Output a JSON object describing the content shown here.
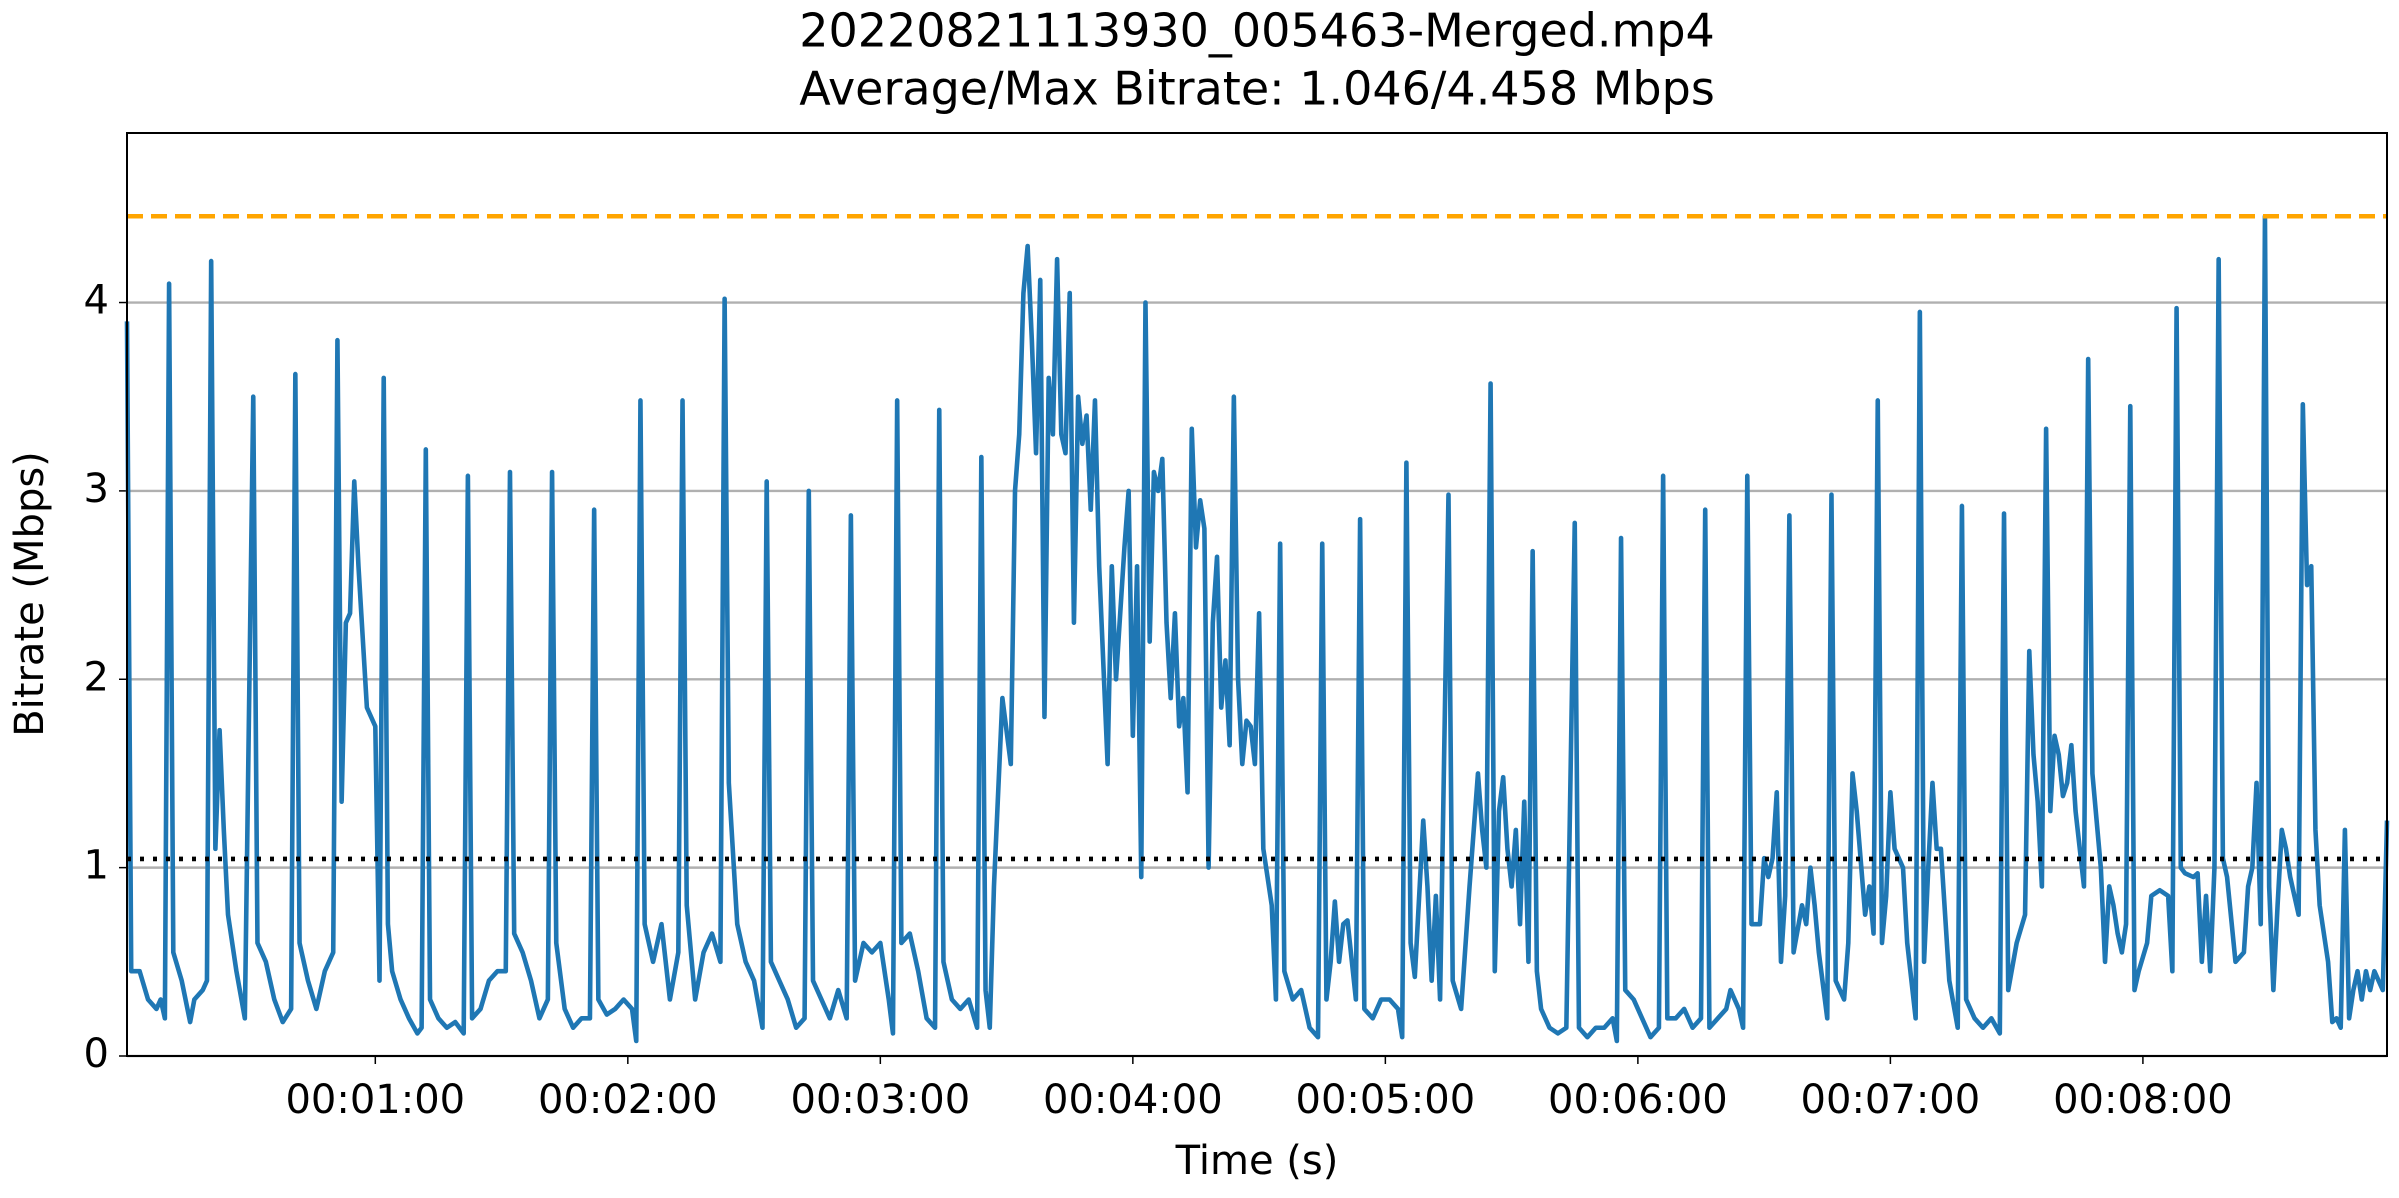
{
  "chart_data": {
    "type": "line",
    "title": "20220821113930_005463-Merged.mp4",
    "subtitle": "Average/Max Bitrate: 1.046/4.458 Mbps",
    "x_label": "Time (s)",
    "y_label": "Bitrate (Mbps)",
    "color": "#1f77b4",
    "xlim": [
      1,
      538
    ],
    "ylim": [
      0,
      4.9
    ],
    "xticks": [
      {
        "value": 60,
        "label": "00:01:00"
      },
      {
        "value": 120,
        "label": "00:02:00"
      },
      {
        "value": 180,
        "label": "00:03:00"
      },
      {
        "value": 240,
        "label": "00:04:00"
      },
      {
        "value": 300,
        "label": "00:05:00"
      },
      {
        "value": 360,
        "label": "00:06:00"
      },
      {
        "value": 420,
        "label": "00:07:00"
      },
      {
        "value": 480,
        "label": "00:08:00"
      }
    ],
    "yticks": [
      0,
      1,
      2,
      3,
      4
    ],
    "grid": "y",
    "hlines": [
      {
        "value": 1.046,
        "color": "#000000",
        "dash": "dotted"
      },
      {
        "value": 4.458,
        "color": "#ffa500",
        "dash": "dashed"
      }
    ],
    "x": [
      1,
      2,
      4,
      6,
      8,
      9,
      10,
      11,
      12,
      14,
      16,
      17,
      19,
      20,
      21,
      22,
      23,
      24,
      25,
      27,
      29,
      31,
      32,
      34,
      36,
      38,
      40,
      41,
      42,
      44,
      46,
      48,
      50,
      51,
      52,
      53,
      54,
      55,
      56,
      58,
      60,
      61,
      62,
      63,
      64,
      66,
      68,
      70,
      71,
      72,
      73,
      75,
      77,
      79,
      81,
      82,
      83,
      85,
      87,
      89,
      91,
      92,
      93,
      95,
      97,
      99,
      101,
      102,
      103,
      105,
      107,
      109,
      111,
      112,
      113,
      115,
      117,
      119,
      121,
      122,
      123,
      124,
      126,
      128,
      130,
      132,
      133,
      134,
      136,
      138,
      140,
      142,
      143,
      144,
      146,
      148,
      150,
      152,
      153,
      154,
      156,
      158,
      160,
      162,
      163,
      164,
      166,
      168,
      170,
      172,
      173,
      174,
      176,
      178,
      180,
      182,
      183,
      184,
      185,
      187,
      189,
      191,
      193,
      194,
      195,
      197,
      199,
      201,
      203,
      204,
      205,
      206,
      207,
      209,
      211,
      212,
      213,
      214,
      215,
      216,
      217,
      218,
      219,
      220,
      221,
      222,
      223,
      224,
      225,
      226,
      227,
      228,
      229,
      230,
      231,
      232,
      234,
      235,
      236,
      238,
      239,
      240,
      241,
      242,
      243,
      244,
      245,
      246,
      247,
      248,
      249,
      250,
      251,
      252,
      253,
      254,
      255,
      256,
      257,
      258,
      259,
      260,
      261,
      262,
      263,
      264,
      265,
      266,
      267,
      268,
      269,
      270,
      271,
      273,
      274,
      275,
      276,
      278,
      280,
      282,
      284,
      285,
      286,
      287,
      288,
      289,
      290,
      291,
      293,
      294,
      295,
      297,
      299,
      301,
      303,
      304,
      305,
      306,
      307,
      309,
      310,
      311,
      312,
      313,
      315,
      316,
      318,
      320,
      322,
      323,
      324,
      325,
      326,
      327,
      328,
      329,
      330,
      331,
      332,
      333,
      334,
      335,
      336,
      337,
      339,
      341,
      343,
      345,
      346,
      348,
      350,
      352,
      354,
      355,
      356,
      357,
      359,
      361,
      363,
      365,
      366,
      367,
      369,
      371,
      373,
      375,
      376,
      377,
      379,
      381,
      382,
      384,
      385,
      386,
      387,
      389,
      390,
      391,
      392,
      393,
      394,
      395,
      396,
      397,
      399,
      400,
      401,
      402,
      403,
      405,
      406,
      407,
      409,
      410,
      411,
      412,
      414,
      415,
      416,
      417,
      418,
      419,
      420,
      421,
      422,
      423,
      424,
      426,
      427,
      428,
      429,
      430,
      431,
      432,
      433,
      434,
      436,
      437,
      438,
      440,
      442,
      444,
      446,
      447,
      448,
      450,
      452,
      453,
      454,
      455,
      456,
      457,
      458,
      459,
      460,
      461,
      462,
      463,
      464,
      466,
      467,
      468,
      470,
      471,
      472,
      473,
      474,
      475,
      476,
      477,
      478,
      479,
      481,
      482,
      484,
      486,
      487,
      488,
      489,
      490,
      492,
      493,
      494,
      495,
      496,
      497,
      498,
      499,
      500,
      502,
      504,
      505,
      506,
      507,
      508,
      509,
      510,
      511,
      512,
      513,
      514,
      515,
      516,
      517,
      518,
      519,
      520,
      521,
      522,
      524,
      525,
      526,
      527,
      528,
      529,
      530,
      531,
      532,
      533,
      534,
      535,
      536,
      537,
      538
    ],
    "values": [
      3.9,
      0.45,
      0.45,
      0.3,
      0.25,
      0.3,
      0.2,
      4.1,
      0.55,
      0.4,
      0.18,
      0.3,
      0.35,
      0.4,
      4.22,
      1.1,
      1.73,
      1.2,
      0.75,
      0.45,
      0.2,
      3.5,
      0.6,
      0.5,
      0.3,
      0.18,
      0.25,
      3.62,
      0.6,
      0.4,
      0.25,
      0.45,
      0.55,
      3.8,
      1.35,
      2.3,
      2.35,
      3.05,
      2.6,
      1.85,
      1.75,
      0.4,
      3.6,
      0.7,
      0.45,
      0.3,
      0.2,
      0.12,
      0.15,
      3.22,
      0.3,
      0.2,
      0.15,
      0.18,
      0.12,
      3.08,
      0.2,
      0.25,
      0.4,
      0.45,
      0.45,
      3.1,
      0.65,
      0.55,
      0.4,
      0.2,
      0.3,
      3.1,
      0.6,
      0.25,
      0.15,
      0.2,
      0.2,
      2.9,
      0.3,
      0.22,
      0.25,
      0.3,
      0.25,
      0.08,
      3.48,
      0.7,
      0.5,
      0.7,
      0.3,
      0.55,
      3.48,
      0.8,
      0.3,
      0.55,
      0.65,
      0.5,
      4.02,
      1.45,
      0.7,
      0.5,
      0.4,
      0.15,
      3.05,
      0.5,
      0.4,
      0.3,
      0.15,
      0.2,
      3.0,
      0.4,
      0.3,
      0.2,
      0.35,
      0.2,
      2.87,
      0.4,
      0.6,
      0.55,
      0.6,
      0.3,
      0.12,
      3.48,
      0.6,
      0.65,
      0.45,
      0.2,
      0.15,
      3.43,
      0.5,
      0.3,
      0.25,
      0.3,
      0.15,
      3.18,
      0.35,
      0.15,
      0.9,
      1.9,
      1.55,
      3.0,
      3.3,
      4.05,
      4.3,
      3.8,
      3.2,
      4.12,
      1.8,
      3.6,
      3.3,
      4.23,
      3.3,
      3.2,
      4.05,
      2.3,
      3.5,
      3.25,
      3.4,
      2.9,
      3.48,
      2.6,
      1.55,
      2.6,
      2.0,
      2.7,
      3.0,
      1.7,
      2.6,
      0.95,
      4.0,
      2.2,
      3.1,
      3.0,
      3.17,
      2.3,
      1.9,
      2.35,
      1.75,
      1.9,
      1.4,
      3.33,
      2.7,
      2.95,
      2.8,
      1.0,
      2.3,
      2.65,
      1.85,
      2.1,
      1.65,
      3.5,
      2.0,
      1.55,
      1.78,
      1.75,
      1.55,
      2.35,
      1.1,
      0.8,
      0.3,
      2.72,
      0.45,
      0.3,
      0.35,
      0.15,
      0.1,
      2.72,
      0.3,
      0.5,
      0.82,
      0.5,
      0.7,
      0.72,
      0.3,
      2.85,
      0.25,
      0.2,
      0.3,
      0.3,
      0.25,
      0.1,
      3.15,
      0.6,
      0.42,
      1.25,
      0.9,
      0.4,
      0.85,
      0.3,
      2.98,
      0.4,
      0.25,
      0.9,
      1.5,
      1.2,
      1.0,
      3.57,
      0.45,
      1.3,
      1.48,
      1.1,
      0.9,
      1.2,
      0.7,
      1.35,
      0.5,
      2.68,
      0.45,
      0.25,
      0.15,
      0.12,
      0.15,
      2.83,
      0.15,
      0.1,
      0.15,
      0.15,
      0.2,
      0.08,
      2.75,
      0.35,
      0.3,
      0.2,
      0.1,
      0.15,
      3.08,
      0.2,
      0.2,
      0.25,
      0.15,
      0.2,
      2.9,
      0.15,
      0.2,
      0.25,
      0.35,
      0.25,
      0.15,
      3.08,
      0.7,
      0.7,
      1.05,
      0.95,
      1.05,
      1.4,
      0.5,
      0.85,
      2.87,
      0.55,
      0.8,
      0.7,
      1.0,
      0.8,
      0.55,
      0.2,
      2.98,
      0.4,
      0.3,
      0.6,
      1.5,
      1.3,
      0.75,
      0.9,
      0.65,
      3.48,
      0.6,
      0.85,
      1.4,
      1.1,
      1.05,
      1.0,
      0.6,
      0.2,
      3.95,
      0.5,
      1.0,
      1.45,
      1.1,
      1.1,
      0.75,
      0.4,
      0.15,
      2.92,
      0.3,
      0.2,
      0.15,
      0.2,
      0.12,
      2.88,
      0.35,
      0.6,
      0.75,
      2.15,
      1.6,
      1.35,
      0.9,
      3.33,
      1.3,
      1.7,
      1.6,
      1.38,
      1.45,
      1.65,
      1.3,
      0.9,
      3.7,
      1.5,
      1.0,
      0.5,
      0.9,
      0.8,
      0.65,
      0.55,
      0.7,
      3.45,
      0.35,
      0.45,
      0.6,
      0.85,
      0.88,
      0.85,
      0.45,
      3.97,
      1.0,
      0.97,
      0.95,
      0.97,
      0.5,
      0.85,
      0.45,
      1.0,
      4.23,
      1.05,
      0.95,
      0.5,
      0.55,
      0.9,
      1.0,
      1.45,
      0.7,
      4.458,
      0.9,
      0.35,
      0.8,
      1.2,
      1.1,
      0.95,
      0.85,
      0.75,
      3.46,
      2.5,
      2.6,
      1.2,
      0.8,
      0.5,
      0.18,
      0.2,
      0.15,
      1.2,
      0.2,
      0.35,
      0.45,
      0.3,
      0.45,
      0.35,
      0.45,
      0.4,
      0.35,
      1.25
    ]
  }
}
